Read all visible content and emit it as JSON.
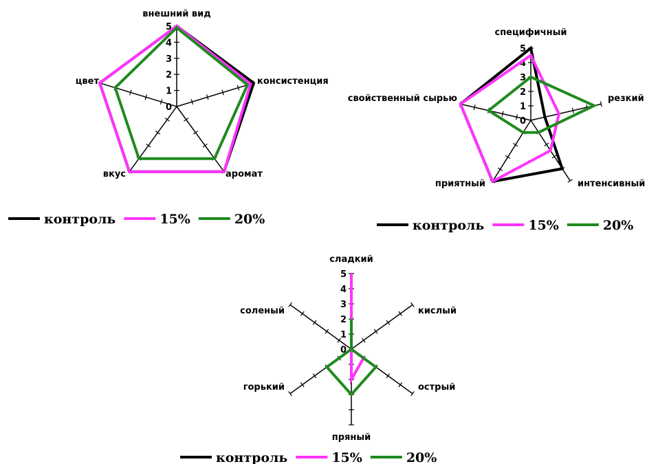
{
  "chart_data": [
    {
      "type": "radar",
      "axes": [
        "внешний вид",
        "консистенция",
        "аромат",
        "вкус",
        "цвет"
      ],
      "scale": [
        0,
        5
      ],
      "tick_labels": [
        "0",
        "1",
        "2",
        "3",
        "4",
        "5"
      ],
      "series": [
        {
          "name": "контроль",
          "color": "#000000",
          "values": [
            5,
            5,
            5,
            5,
            5
          ]
        },
        {
          "name": "15%",
          "color": "#ff33ff",
          "values": [
            5,
            4.8,
            5,
            5,
            5
          ]
        },
        {
          "name": "20%",
          "color": "#1f8a1f",
          "values": [
            4.9,
            4.6,
            4,
            4,
            4
          ]
        }
      ],
      "legend": "bottom-left"
    },
    {
      "type": "radar",
      "axes": [
        "специфичный",
        "резкий",
        "интенсивный",
        "приятный",
        "свойственный сырью"
      ],
      "scale": [
        0,
        5
      ],
      "tick_labels": [
        "0",
        "1",
        "2",
        "3",
        "4",
        "5"
      ],
      "series": [
        {
          "name": "контроль",
          "color": "#000000",
          "values": [
            5,
            1,
            4,
            5,
            5
          ]
        },
        {
          "name": "15%",
          "color": "#ff33ff",
          "values": [
            4.5,
            2,
            2.5,
            5,
            5
          ]
        },
        {
          "name": "20%",
          "color": "#1f8a1f",
          "values": [
            3,
            4.5,
            1,
            1,
            3
          ]
        }
      ],
      "legend": "bottom"
    },
    {
      "type": "radar",
      "axes": [
        "сладкий",
        "кислый",
        "острый",
        "пряный",
        "горький",
        "соленый"
      ],
      "scale": [
        0,
        5
      ],
      "tick_labels": [
        "0",
        "1",
        "2",
        "3",
        "4",
        "5"
      ],
      "series": [
        {
          "name": "контроль",
          "color": "#000000",
          "values": [
            0,
            0,
            0,
            0,
            0,
            0
          ]
        },
        {
          "name": "15%",
          "color": "#ff33ff",
          "values": [
            5,
            0,
            1,
            2,
            0,
            0
          ]
        },
        {
          "name": "20%",
          "color": "#1f8a1f",
          "values": [
            2,
            0,
            2,
            3,
            2,
            0
          ]
        }
      ],
      "legend": "bottom"
    }
  ]
}
